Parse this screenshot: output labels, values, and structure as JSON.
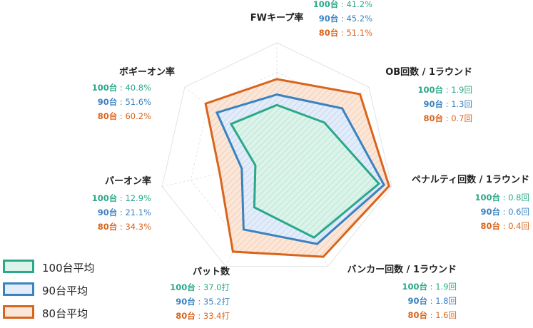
{
  "chart_data": {
    "type": "radar",
    "axes": [
      {
        "label": "FWキープ率",
        "unit": "%"
      },
      {
        "label": "OB回数 / 1ラウンド",
        "unit": "回"
      },
      {
        "label": "ペナルティ回数 / 1ラウンド",
        "unit": "回"
      },
      {
        "label": "バンカー回数 / 1ラウンド",
        "unit": "回"
      },
      {
        "label": "パット数",
        "unit": "打"
      },
      {
        "label": "パーオン率",
        "unit": "%"
      },
      {
        "label": "ボギーオン率",
        "unit": "%"
      }
    ],
    "series": [
      {
        "name": "100台平均",
        "short": "100台",
        "color": "#2aa888",
        "values": [
          41.2,
          1.9,
          0.8,
          1.9,
          37.0,
          12.9,
          40.8
        ],
        "display": [
          "41.2%",
          "1.9回",
          "0.8回",
          "1.9回",
          "37.0打",
          "12.9%",
          "40.8%"
        ]
      },
      {
        "name": "90台平均",
        "short": "90台",
        "color": "#3a82c0",
        "values": [
          45.2,
          1.3,
          0.6,
          1.8,
          35.2,
          21.1,
          51.6
        ],
        "display": [
          "45.2%",
          "1.3回",
          "0.6回",
          "1.8回",
          "35.2打",
          "21.1%",
          "51.6%"
        ]
      },
      {
        "name": "80台平均",
        "short": "80台",
        "color": "#d9641c",
        "values": [
          51.1,
          0.7,
          0.4,
          1.6,
          33.4,
          34.3,
          60.2
        ],
        "display": [
          "51.1%",
          "0.7回",
          "0.4回",
          "1.6回",
          "33.4打",
          "34.3%",
          "60.2%"
        ]
      }
    ],
    "separator": " : ",
    "grid": true,
    "legend_position": "bottom-left"
  }
}
